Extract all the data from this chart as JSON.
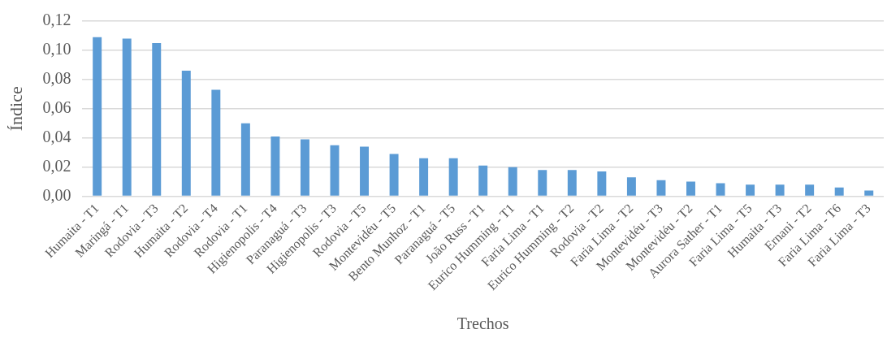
{
  "chart_data": {
    "type": "bar",
    "xlabel": "Trechos",
    "ylabel": "Índice",
    "categories": [
      "Humaita - T1",
      "Maringá - T1",
      "Rodovia - T3",
      "Humaita - T2",
      "Rodovia - T4",
      "Rodovia - T1",
      "Higienopolis - T4",
      "Paranaguá - T3",
      "Higienopolis - T3",
      "Rodovia - T5",
      "Montevidéu - T5",
      "Bento Munhoz - T1",
      "Paranaguá - T5",
      "João Russ - T1",
      "Eurico Humming - T1",
      "Faria Lima - T1",
      "Eurico Humming - T2",
      "Rodovia - T2",
      "Faria Lima - T2",
      "Montevidéu - T3",
      "Montevidéu - T2",
      "Aurora Sather - T1",
      "Faria Lima - T5",
      "Humaita - T3",
      "Ernani - T2",
      "Faria Lima - T6",
      "Faria Lima - T3"
    ],
    "values": [
      0.109,
      0.108,
      0.105,
      0.086,
      0.073,
      0.05,
      0.041,
      0.039,
      0.035,
      0.034,
      0.029,
      0.026,
      0.026,
      0.021,
      0.02,
      0.018,
      0.018,
      0.017,
      0.013,
      0.011,
      0.01,
      0.009,
      0.008,
      0.008,
      0.008,
      0.006,
      0.004
    ],
    "color": "#5b9bd5",
    "ylim": [
      0,
      0.12
    ],
    "yticks": [
      {
        "value": 0,
        "label": "0,00"
      },
      {
        "value": 0.02,
        "label": "0,02"
      },
      {
        "value": 0.04,
        "label": "0,04"
      },
      {
        "value": 0.06,
        "label": "0,06"
      },
      {
        "value": 0.08,
        "label": "0,08"
      },
      {
        "value": 0.1,
        "label": "0,10"
      },
      {
        "value": 0.12,
        "label": "0,12"
      }
    ],
    "grid": "y",
    "legend": false
  }
}
